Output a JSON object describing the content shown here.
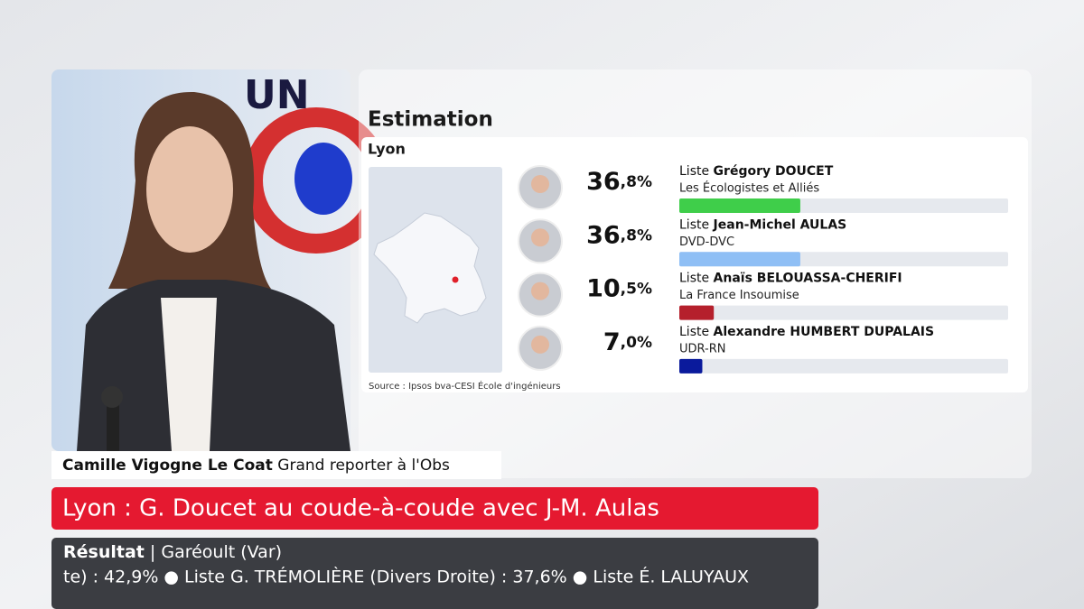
{
  "chart_data": {
    "type": "bar",
    "title": "Estimation",
    "subtitle": "Lyon",
    "candidates": [
      {
        "prefix": "Liste",
        "name": "Grégory DOUCET",
        "party": "Les Écologistes et Alliés"
      },
      {
        "prefix": "Liste",
        "name": "Jean-Michel AULAS",
        "party": "DVD-DVC"
      },
      {
        "prefix": "Liste",
        "name": "Anaïs BELOUASSA-CHERIFI",
        "party": "La France Insoumise"
      },
      {
        "prefix": "Liste",
        "name": "Alexandre HUMBERT DUPALAIS",
        "party": "UDR-RN"
      }
    ],
    "values": [
      36.8,
      36.8,
      10.5,
      7.0
    ],
    "value_labels": [
      "36,8%",
      "36,8%",
      "10,5%",
      "7,0%"
    ],
    "colors": [
      "#3fce4a",
      "#8fbff5",
      "#b5202c",
      "#0a1a9c"
    ],
    "xlim": [
      0,
      100
    ],
    "source": "Source : Ipsos bva-CESI École d'ingénieurs"
  },
  "lower_third": {
    "name": "Camille Vigogne Le Coat",
    "role": "Grand reporter à l'Obs"
  },
  "headline": "Lyon : G. Doucet au coude-à-coude avec J-M. Aulas",
  "ticker": {
    "label": "Résultat",
    "location": "Garéoult (Var)",
    "text": "te) : 42,9% ● Liste G. TRÉMOLIÈRE (Divers Droite) : 37,6% ● Liste É. LALUYAUX"
  }
}
